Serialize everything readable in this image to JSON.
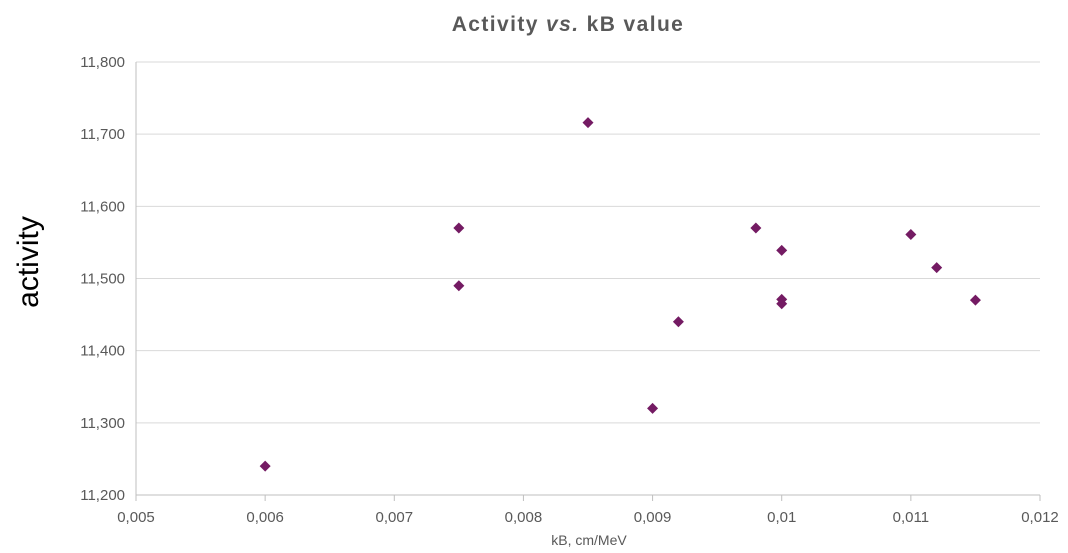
{
  "chart_data": {
    "type": "scatter",
    "title": {
      "prefix": "Activity ",
      "italic": "vs.",
      "suffix": " kB value"
    },
    "xlabel": "kB, cm/MeV",
    "ylabel": "activity",
    "xlim": [
      0.005,
      0.012
    ],
    "ylim": [
      11.2,
      11.8
    ],
    "x_ticks": [
      {
        "value": 0.005,
        "label": "0,005"
      },
      {
        "value": 0.006,
        "label": "0,006"
      },
      {
        "value": 0.007,
        "label": "0,007"
      },
      {
        "value": 0.008,
        "label": "0,008"
      },
      {
        "value": 0.009,
        "label": "0,009"
      },
      {
        "value": 0.01,
        "label": "0,01"
      },
      {
        "value": 0.011,
        "label": "0,011"
      },
      {
        "value": 0.012,
        "label": "0,012"
      }
    ],
    "y_ticks": [
      {
        "value": 11.2,
        "label": "11,200"
      },
      {
        "value": 11.3,
        "label": "11,300"
      },
      {
        "value": 11.4,
        "label": "11,400"
      },
      {
        "value": 11.5,
        "label": "11,500"
      },
      {
        "value": 11.6,
        "label": "11,600"
      },
      {
        "value": 11.7,
        "label": "11,700"
      },
      {
        "value": 11.8,
        "label": "11,800"
      }
    ],
    "grid": {
      "horizontal": true,
      "vertical": false
    },
    "legend": "none",
    "marker": "diamond",
    "marker_color": "#741B63",
    "gridline_color": "#D9D9D9",
    "axis_color": "#BFBFBF",
    "points": [
      {
        "x": 0.006,
        "y": 11.24
      },
      {
        "x": 0.0075,
        "y": 11.57
      },
      {
        "x": 0.0075,
        "y": 11.49
      },
      {
        "x": 0.0085,
        "y": 11.716
      },
      {
        "x": 0.009,
        "y": 11.32
      },
      {
        "x": 0.0092,
        "y": 11.44
      },
      {
        "x": 0.0098,
        "y": 11.57
      },
      {
        "x": 0.01,
        "y": 11.539
      },
      {
        "x": 0.01,
        "y": 11.471
      },
      {
        "x": 0.01,
        "y": 11.465
      },
      {
        "x": 0.011,
        "y": 11.561
      },
      {
        "x": 0.0112,
        "y": 11.515
      },
      {
        "x": 0.0115,
        "y": 11.47
      }
    ]
  }
}
